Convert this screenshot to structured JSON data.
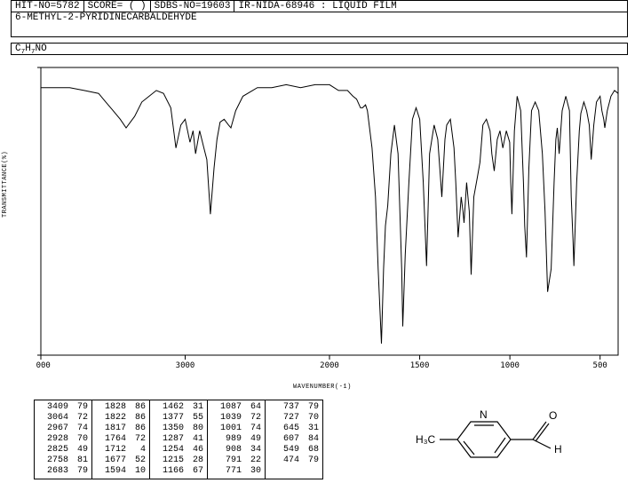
{
  "header": {
    "hit_no": "HIT-NO=5782",
    "score": "SCORE=  (  )",
    "sdbs_no": "SDBS-NO=19603",
    "spectrum_id": "IR-NIDA-68946 : LIQUID FILM"
  },
  "compound_name": "6-METHYL-2-PYRIDINECARBALDEHYDE",
  "formula_html": "C<sub>7</sub>H<sub>7</sub>NO",
  "chart": {
    "type": "line",
    "xlabel": "WAVENUMBER(-1)",
    "ylabel": "TRANSMITTANCE(%)",
    "xlim": [
      4000,
      400
    ],
    "ylim": [
      0,
      100
    ],
    "xticks": [
      4000,
      3000,
      2000,
      1500,
      1000,
      500
    ],
    "yticks": [
      0,
      100
    ],
    "line_color": "#000000",
    "background_color": "#ffffff",
    "border_color": "#000000",
    "line_width": 1,
    "font_size": 9,
    "grid": false,
    "x_breakpoint": 2000,
    "spectrum": [
      [
        4000,
        93
      ],
      [
        3900,
        93
      ],
      [
        3800,
        93
      ],
      [
        3700,
        92
      ],
      [
        3600,
        91
      ],
      [
        3550,
        88
      ],
      [
        3500,
        85
      ],
      [
        3450,
        82
      ],
      [
        3409,
        79
      ],
      [
        3350,
        83
      ],
      [
        3300,
        88
      ],
      [
        3250,
        90
      ],
      [
        3200,
        92
      ],
      [
        3150,
        91
      ],
      [
        3100,
        86
      ],
      [
        3064,
        72
      ],
      [
        3030,
        80
      ],
      [
        3000,
        82
      ],
      [
        2967,
        74
      ],
      [
        2945,
        78
      ],
      [
        2928,
        70
      ],
      [
        2900,
        78
      ],
      [
        2870,
        72
      ],
      [
        2850,
        68
      ],
      [
        2825,
        49
      ],
      [
        2800,
        65
      ],
      [
        2780,
        75
      ],
      [
        2758,
        81
      ],
      [
        2730,
        82
      ],
      [
        2700,
        80
      ],
      [
        2683,
        79
      ],
      [
        2650,
        85
      ],
      [
        2600,
        90
      ],
      [
        2500,
        93
      ],
      [
        2400,
        93
      ],
      [
        2300,
        94
      ],
      [
        2200,
        93
      ],
      [
        2100,
        94
      ],
      [
        2000,
        94
      ],
      [
        1950,
        92
      ],
      [
        1900,
        92
      ],
      [
        1870,
        90
      ],
      [
        1850,
        89
      ],
      [
        1828,
        86
      ],
      [
        1822,
        86
      ],
      [
        1817,
        86
      ],
      [
        1800,
        87
      ],
      [
        1790,
        85
      ],
      [
        1780,
        80
      ],
      [
        1764,
        72
      ],
      [
        1745,
        55
      ],
      [
        1730,
        30
      ],
      [
        1712,
        4
      ],
      [
        1700,
        30
      ],
      [
        1690,
        45
      ],
      [
        1677,
        52
      ],
      [
        1660,
        70
      ],
      [
        1640,
        80
      ],
      [
        1620,
        70
      ],
      [
        1600,
        30
      ],
      [
        1594,
        10
      ],
      [
        1580,
        35
      ],
      [
        1560,
        60
      ],
      [
        1540,
        82
      ],
      [
        1520,
        86
      ],
      [
        1500,
        82
      ],
      [
        1480,
        60
      ],
      [
        1462,
        31
      ],
      [
        1445,
        70
      ],
      [
        1420,
        80
      ],
      [
        1400,
        75
      ],
      [
        1377,
        55
      ],
      [
        1360,
        75
      ],
      [
        1350,
        80
      ],
      [
        1330,
        82
      ],
      [
        1310,
        72
      ],
      [
        1300,
        60
      ],
      [
        1287,
        41
      ],
      [
        1270,
        55
      ],
      [
        1260,
        50
      ],
      [
        1254,
        46
      ],
      [
        1240,
        60
      ],
      [
        1225,
        50
      ],
      [
        1215,
        28
      ],
      [
        1200,
        55
      ],
      [
        1180,
        62
      ],
      [
        1166,
        67
      ],
      [
        1150,
        80
      ],
      [
        1130,
        82
      ],
      [
        1110,
        78
      ],
      [
        1100,
        70
      ],
      [
        1087,
        64
      ],
      [
        1070,
        75
      ],
      [
        1055,
        78
      ],
      [
        1039,
        72
      ],
      [
        1020,
        78
      ],
      [
        1001,
        74
      ],
      [
        995,
        60
      ],
      [
        989,
        49
      ],
      [
        975,
        78
      ],
      [
        960,
        90
      ],
      [
        940,
        85
      ],
      [
        925,
        60
      ],
      [
        918,
        45
      ],
      [
        908,
        34
      ],
      [
        895,
        65
      ],
      [
        880,
        85
      ],
      [
        860,
        88
      ],
      [
        840,
        85
      ],
      [
        820,
        70
      ],
      [
        805,
        50
      ],
      [
        791,
        22
      ],
      [
        771,
        30
      ],
      [
        755,
        60
      ],
      [
        745,
        75
      ],
      [
        737,
        79
      ],
      [
        727,
        70
      ],
      [
        710,
        85
      ],
      [
        690,
        90
      ],
      [
        670,
        85
      ],
      [
        660,
        55
      ],
      [
        650,
        40
      ],
      [
        645,
        31
      ],
      [
        630,
        60
      ],
      [
        615,
        78
      ],
      [
        607,
        84
      ],
      [
        590,
        88
      ],
      [
        575,
        85
      ],
      [
        560,
        80
      ],
      [
        549,
        68
      ],
      [
        535,
        80
      ],
      [
        520,
        88
      ],
      [
        500,
        90
      ],
      [
        490,
        85
      ],
      [
        480,
        82
      ],
      [
        474,
        79
      ],
      [
        460,
        85
      ],
      [
        440,
        90
      ],
      [
        420,
        92
      ],
      [
        400,
        91
      ]
    ]
  },
  "peak_table": {
    "columns": [
      [
        [
          "3409",
          "79"
        ],
        [
          "3064",
          "72"
        ],
        [
          "2967",
          "74"
        ],
        [
          "2928",
          "70"
        ],
        [
          "2825",
          "49"
        ],
        [
          "2758",
          "81"
        ],
        [
          "2683",
          "79"
        ]
      ],
      [
        [
          "1828",
          "86"
        ],
        [
          "1822",
          "86"
        ],
        [
          "1817",
          "86"
        ],
        [
          "1764",
          "72"
        ],
        [
          "1712",
          "4"
        ],
        [
          "1677",
          "52"
        ],
        [
          "1594",
          "10"
        ]
      ],
      [
        [
          "1462",
          "31"
        ],
        [
          "1377",
          "55"
        ],
        [
          "1350",
          "80"
        ],
        [
          "1287",
          "41"
        ],
        [
          "1254",
          "46"
        ],
        [
          "1215",
          "28"
        ],
        [
          "1166",
          "67"
        ]
      ],
      [
        [
          "1087",
          "64"
        ],
        [
          "1039",
          "72"
        ],
        [
          "1001",
          "74"
        ],
        [
          "989",
          "49"
        ],
        [
          "908",
          "34"
        ],
        [
          "791",
          "22"
        ],
        [
          "771",
          "30"
        ]
      ],
      [
        [
          "737",
          "79"
        ],
        [
          "727",
          "70"
        ],
        [
          "645",
          "31"
        ],
        [
          "607",
          "84"
        ],
        [
          "549",
          "68"
        ],
        [
          "474",
          "79"
        ]
      ]
    ]
  },
  "molecule": {
    "ch3_label": "H₃C",
    "n_label": "N",
    "o_label": "O",
    "h_label": "H",
    "line_color": "#000000"
  }
}
